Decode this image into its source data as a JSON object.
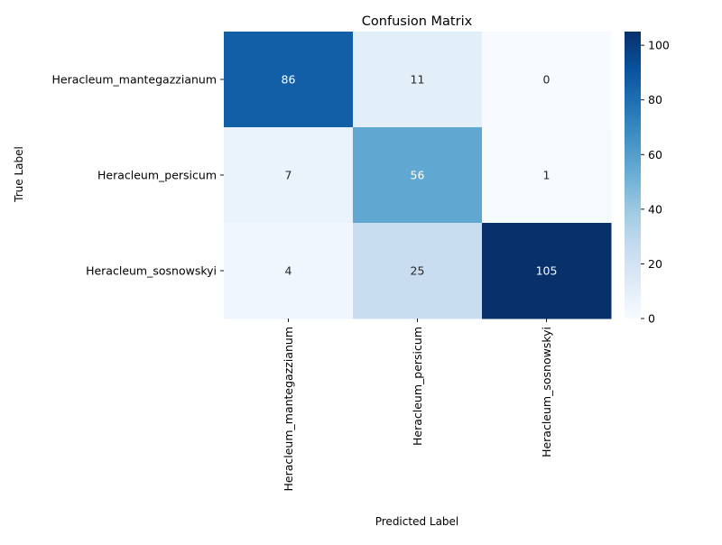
{
  "chart_data": {
    "type": "heatmap",
    "title": "Confusion Matrix",
    "xlabel": "Predicted Label",
    "ylabel": "True Label",
    "rows": [
      "Heracleum_mantegazzianum",
      "Heracleum_persicum",
      "Heracleum_sosnowskyi"
    ],
    "columns": [
      "Heracleum_mantegazzianum",
      "Heracleum_persicum",
      "Heracleum_sosnowskyi"
    ],
    "values": [
      [
        86,
        11,
        0
      ],
      [
        7,
        56,
        1
      ],
      [
        4,
        25,
        105
      ]
    ],
    "annotations": true,
    "colormap": "Blues",
    "colormap_stops": [
      "#f7fbff",
      "#deebf7",
      "#c6dbef",
      "#9ecae1",
      "#6baed6",
      "#4292c6",
      "#2171b5",
      "#08519c",
      "#08306b"
    ],
    "colorbar": {
      "range": [
        0,
        105
      ],
      "ticks": [
        0,
        20,
        40,
        60,
        80,
        100
      ]
    },
    "annotation_colors": {
      "light_cell": "#262626",
      "dark_cell": "#ffffff"
    }
  }
}
